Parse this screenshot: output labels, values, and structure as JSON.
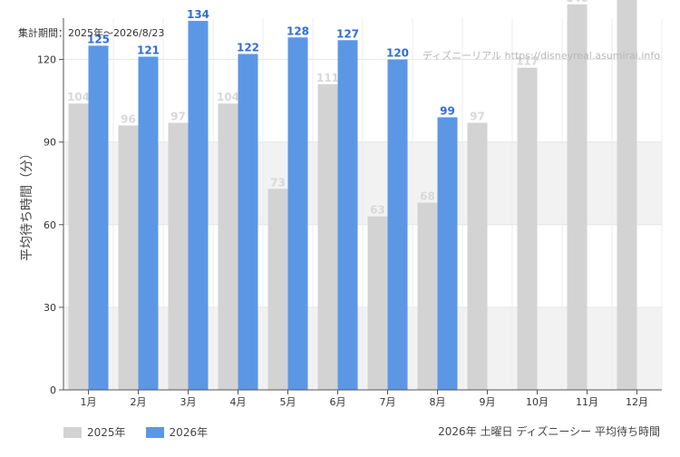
{
  "header": {
    "period": "集計期間：2025年～2026/8/23",
    "watermark": "ディズニーリアル https://disneyreal.asumirai.info"
  },
  "footer": {
    "title": "2026年 土曜日 ディズニーシー 平均待ち時間"
  },
  "colors": {
    "s2025": "#d3d3d3",
    "s2026": "#5c97e6",
    "label2025": "#d8d8d8",
    "label2026": "#2e6fd6",
    "band": "#f2f2f2",
    "axis": "#555555"
  },
  "chart_data": {
    "type": "bar",
    "ylabel": "平均待ち時間（分）",
    "ylim": [
      0,
      135
    ],
    "yticks": [
      0,
      30,
      60,
      90,
      120
    ],
    "grid": true,
    "legend_position": "bottom-left",
    "categories": [
      "1月",
      "2月",
      "3月",
      "4月",
      "5月",
      "6月",
      "7月",
      "8月",
      "9月",
      "10月",
      "11月",
      "12月"
    ],
    "series": [
      {
        "name": "2025年",
        "values": [
          104,
          96,
          97,
          104,
          73,
          111,
          63,
          68,
          97,
          117,
          140,
          150
        ]
      },
      {
        "name": "2026年",
        "values": [
          125,
          121,
          134,
          122,
          128,
          127,
          120,
          99,
          null,
          null,
          null,
          null
        ]
      }
    ]
  }
}
